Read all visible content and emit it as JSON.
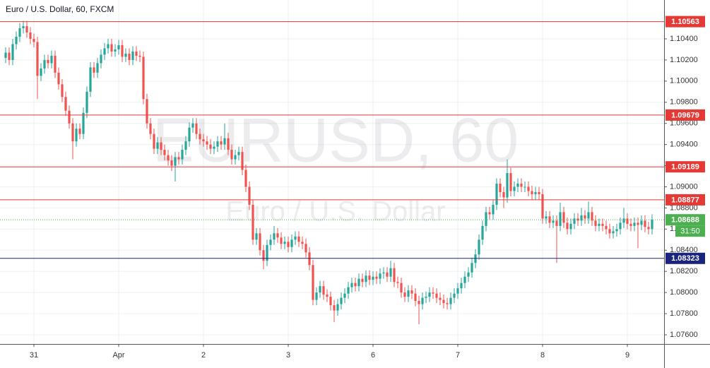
{
  "chart_data": {
    "type": "candlestick",
    "title": "Euro / U.S. Dollar, 60, FXCM",
    "watermark": "EURUSD, 60",
    "watermark_subtitle": "Euro / U.S. Dollar",
    "up_color": "#26a69a",
    "down_color": "#ef5350",
    "grid": true,
    "ylim": [
      1.07513,
      1.10714
    ],
    "yticks": [
      {
        "value": 1.104,
        "label": "1.10400"
      },
      {
        "value": 1.102,
        "label": "1.10200"
      },
      {
        "value": 1.1,
        "label": "1.10000"
      },
      {
        "value": 1.098,
        "label": "1.09800"
      },
      {
        "value": 1.096,
        "label": "1.09600"
      },
      {
        "value": 1.094,
        "label": "1.09400"
      },
      {
        "value": 1.092,
        "label": "1.09200"
      },
      {
        "value": 1.09,
        "label": "1.09000"
      },
      {
        "value": 1.088,
        "label": "1.08800"
      },
      {
        "value": 1.086,
        "label": "1.08600"
      },
      {
        "value": 1.084,
        "label": "1.08400"
      },
      {
        "value": 1.082,
        "label": "1.08200"
      },
      {
        "value": 1.08,
        "label": "1.08000"
      },
      {
        "value": 1.078,
        "label": "1.07800"
      },
      {
        "value": 1.076,
        "label": "1.07600"
      }
    ],
    "xlim": [
      -1.6,
      186.4
    ],
    "xticks": [
      {
        "value": 8,
        "label": "31"
      },
      {
        "value": 32,
        "label": "Apr"
      },
      {
        "value": 56,
        "label": "2"
      },
      {
        "value": 80,
        "label": "3"
      },
      {
        "value": 104,
        "label": "6"
      },
      {
        "value": 128,
        "label": "7"
      },
      {
        "value": 152,
        "label": "8"
      },
      {
        "value": 176,
        "label": "9"
      }
    ],
    "levels": [
      {
        "value": 1.10563,
        "color": "#e53935"
      },
      {
        "value": 1.09679,
        "color": "#e53935"
      },
      {
        "value": 1.09189,
        "color": "#e53935"
      },
      {
        "value": 1.08877,
        "color": "#e53935"
      },
      {
        "value": 1.08323,
        "color": "#1a237e"
      }
    ],
    "last_price": 1.08688,
    "last_price_color": "#4caf50",
    "countdown": "31:50",
    "open": [
      1.1022,
      1.1027,
      1.102,
      1.1035,
      1.1042,
      1.105,
      1.1052,
      1.1046,
      1.104,
      1.1037,
      1.1005,
      1.1012,
      1.102,
      1.1017,
      1.1024,
      1.1008,
      1.0997,
      1.0985,
      1.0972,
      1.096,
      1.0943,
      1.0955,
      1.095,
      1.097,
      1.099,
      1.1013,
      1.1008,
      1.1017,
      1.1025,
      1.1031,
      1.1035,
      1.1028,
      1.103,
      1.1034,
      1.1023,
      1.1026,
      1.102,
      1.1028,
      1.1024,
      1.1023,
      1.0983,
      1.096,
      1.095,
      1.0936,
      1.0942,
      1.0935,
      1.093,
      1.0925,
      1.092,
      1.0928,
      1.0926,
      1.0935,
      1.0943,
      1.0956,
      1.096,
      1.095,
      1.0945,
      1.0943,
      1.094,
      1.0936,
      1.0938,
      1.0943,
      1.094,
      1.0946,
      1.0935,
      1.0926,
      1.093,
      1.0933,
      1.0916,
      1.09,
      1.0883,
      1.085,
      1.0856,
      1.084,
      1.083,
      1.0845,
      1.085,
      1.0856,
      1.0852,
      1.0846,
      1.0848,
      1.0843,
      1.085,
      1.0853,
      1.0848,
      1.0846,
      1.0838,
      1.0826,
      1.0793,
      1.08,
      1.0806,
      1.0798,
      1.0796,
      1.0788,
      1.0783,
      1.0789,
      1.0795,
      1.0799,
      1.0805,
      1.0809,
      1.0806,
      1.0813,
      1.081,
      1.0816,
      1.0812,
      1.0815,
      1.0813,
      1.0818,
      1.0819,
      1.0815,
      1.0823,
      1.081,
      1.0809,
      1.08,
      1.0796,
      1.0802,
      1.0799,
      1.0792,
      1.0789,
      1.0795,
      1.0796,
      1.08,
      1.0799,
      1.0795,
      1.0793,
      1.079,
      1.0789,
      1.0795,
      1.0799,
      1.0804,
      1.0809,
      1.0815,
      1.0819,
      1.0828,
      1.0836,
      1.085,
      1.0863,
      1.0876,
      1.0874,
      1.0883,
      1.0903,
      1.0895,
      1.089,
      1.0913,
      1.0896,
      1.09,
      1.0903,
      1.09,
      1.09,
      1.0896,
      1.0893,
      1.0895,
      1.0893,
      1.087,
      1.0872,
      1.0866,
      1.0868,
      1.0863,
      1.0876,
      1.0866,
      1.086,
      1.0865,
      1.087,
      1.0868,
      1.0873,
      1.087,
      1.0876,
      1.0868,
      1.0863,
      1.0865,
      1.0863,
      1.086,
      1.0856,
      1.0858,
      1.086,
      1.0866,
      1.087,
      1.0865,
      1.0863,
      1.0866,
      1.0864,
      1.0868,
      1.0862,
      1.086
    ],
    "high": [
      1.1032,
      1.1032,
      1.104,
      1.1047,
      1.1055,
      1.1057,
      1.1057,
      1.1051,
      1.1045,
      1.1042,
      1.1017,
      1.1025,
      1.1025,
      1.1029,
      1.1029,
      1.1013,
      1.1002,
      1.099,
      1.0977,
      1.0965,
      1.096,
      1.096,
      1.0975,
      1.0995,
      1.1018,
      1.1018,
      1.1022,
      1.103,
      1.1036,
      1.104,
      1.104,
      1.1035,
      1.1039,
      1.1039,
      1.1031,
      1.1031,
      1.1033,
      1.1033,
      1.1029,
      1.1028,
      1.0988,
      1.0965,
      1.0955,
      1.0947,
      1.0947,
      1.094,
      1.0935,
      1.093,
      1.0933,
      1.0933,
      1.094,
      1.0948,
      1.0961,
      1.0965,
      1.0965,
      1.0955,
      1.095,
      1.0948,
      1.0945,
      1.0943,
      1.0948,
      1.0948,
      1.096,
      1.0951,
      1.094,
      1.0935,
      1.0938,
      1.0938,
      1.0921,
      1.0905,
      1.0888,
      1.0861,
      1.0861,
      1.0845,
      1.085,
      1.0855,
      1.0863,
      1.0861,
      1.0857,
      1.0853,
      1.0853,
      1.0855,
      1.0858,
      1.0858,
      1.0853,
      1.0851,
      1.0843,
      1.0831,
      1.0805,
      1.0811,
      1.0811,
      1.0803,
      1.0801,
      1.0793,
      1.0794,
      1.08,
      1.0804,
      1.081,
      1.0814,
      1.0814,
      1.0818,
      1.0818,
      1.0821,
      1.0821,
      1.082,
      1.082,
      1.0823,
      1.0824,
      1.0824,
      1.083,
      1.0828,
      1.0815,
      1.0814,
      1.0805,
      1.0807,
      1.0807,
      1.0804,
      1.0797,
      1.08,
      1.0801,
      1.0805,
      1.0805,
      1.0804,
      1.08,
      1.0798,
      1.0795,
      1.08,
      1.0804,
      1.0809,
      1.0814,
      1.082,
      1.0824,
      1.0833,
      1.0841,
      1.0855,
      1.0868,
      1.0881,
      1.0881,
      1.0888,
      1.0908,
      1.0908,
      1.09,
      1.0926,
      1.0918,
      1.0905,
      1.0908,
      1.0908,
      1.0905,
      1.0905,
      1.0901,
      1.09,
      1.09,
      1.0898,
      1.0877,
      1.0877,
      1.0873,
      1.0873,
      1.0885,
      1.0881,
      1.0871,
      1.087,
      1.0875,
      1.0875,
      1.088,
      1.0878,
      1.0886,
      1.0881,
      1.0873,
      1.087,
      1.087,
      1.0868,
      1.0865,
      1.0863,
      1.0865,
      1.0871,
      1.088,
      1.0875,
      1.087,
      1.0871,
      1.0871,
      1.0873,
      1.0873,
      1.0867,
      1.0874
    ],
    "low": [
      1.1017,
      1.1015,
      1.1015,
      1.103,
      1.1037,
      1.1045,
      1.1041,
      1.1035,
      1.1032,
      1.0983,
      1.1,
      1.1007,
      1.1012,
      1.1012,
      1.1003,
      1.0992,
      1.098,
      1.0967,
      1.0955,
      1.0926,
      1.0938,
      1.0945,
      1.0945,
      1.0965,
      1.0985,
      1.1003,
      1.1003,
      1.1012,
      1.102,
      1.1026,
      1.1023,
      1.1023,
      1.1025,
      1.1018,
      1.1018,
      1.1015,
      1.1015,
      1.1019,
      1.1018,
      1.0978,
      1.0955,
      1.0945,
      1.0931,
      1.0931,
      1.093,
      1.0925,
      1.092,
      1.0915,
      1.0905,
      1.0921,
      1.0921,
      1.093,
      1.0938,
      1.0951,
      1.0945,
      1.094,
      1.0938,
      1.0935,
      1.0931,
      1.0931,
      1.0933,
      1.0935,
      1.0935,
      1.093,
      1.0921,
      1.0921,
      1.0925,
      1.0911,
      1.0895,
      1.0878,
      1.0845,
      1.0845,
      1.0835,
      1.0822,
      1.0825,
      1.084,
      1.0845,
      1.0847,
      1.0841,
      1.0841,
      1.0838,
      1.0838,
      1.0845,
      1.0843,
      1.0841,
      1.0833,
      1.0821,
      1.0788,
      1.0788,
      1.0795,
      1.0793,
      1.0791,
      1.0783,
      1.0772,
      1.0778,
      1.0784,
      1.079,
      1.0794,
      1.08,
      1.0801,
      1.0801,
      1.0805,
      1.0805,
      1.0807,
      1.0807,
      1.0808,
      1.0808,
      1.0813,
      1.081,
      1.081,
      1.0805,
      1.0804,
      1.0795,
      1.0791,
      1.0791,
      1.0794,
      1.0787,
      1.077,
      1.0784,
      1.079,
      1.0791,
      1.0794,
      1.079,
      1.0788,
      1.0785,
      1.0784,
      1.0784,
      1.079,
      1.0794,
      1.0799,
      1.0804,
      1.081,
      1.0814,
      1.0823,
      1.0831,
      1.0845,
      1.0858,
      1.0869,
      1.0869,
      1.0878,
      1.089,
      1.088,
      1.0885,
      1.0891,
      1.0891,
      1.0895,
      1.0895,
      1.0895,
      1.0891,
      1.0888,
      1.0888,
      1.0888,
      1.0865,
      1.0865,
      1.0861,
      1.0861,
      1.0828,
      1.0858,
      1.0861,
      1.0855,
      1.0855,
      1.086,
      1.0863,
      1.0863,
      1.0865,
      1.0865,
      1.0863,
      1.0858,
      1.0858,
      1.0858,
      1.0855,
      1.0851,
      1.0851,
      1.0853,
      1.0855,
      1.0861,
      1.086,
      1.0858,
      1.0858,
      1.0842,
      1.0859,
      1.0857,
      1.0855,
      1.0855
    ],
    "close": [
      1.1027,
      1.102,
      1.1035,
      1.1042,
      1.105,
      1.1052,
      1.1046,
      1.104,
      1.1037,
      1.1005,
      1.1012,
      1.102,
      1.1017,
      1.1024,
      1.1008,
      1.0997,
      1.0985,
      1.0972,
      1.096,
      1.0943,
      1.0955,
      1.095,
      1.097,
      1.099,
      1.1013,
      1.1008,
      1.1017,
      1.1025,
      1.1031,
      1.1035,
      1.1028,
      1.103,
      1.1034,
      1.1023,
      1.1026,
      1.102,
      1.1028,
      1.1024,
      1.1023,
      1.0983,
      1.096,
      1.095,
      1.0936,
      1.0942,
      1.0935,
      1.093,
      1.0925,
      1.092,
      1.0928,
      1.0926,
      1.0935,
      1.0943,
      1.0956,
      1.096,
      1.095,
      1.0945,
      1.0943,
      1.094,
      1.0936,
      1.0938,
      1.0943,
      1.094,
      1.0946,
      1.0935,
      1.0926,
      1.093,
      1.0933,
      1.0916,
      1.09,
      1.0883,
      1.085,
      1.0856,
      1.084,
      1.083,
      1.0845,
      1.085,
      1.0856,
      1.0852,
      1.0846,
      1.0848,
      1.0843,
      1.085,
      1.0853,
      1.0848,
      1.0846,
      1.0838,
      1.0826,
      1.0793,
      1.08,
      1.0806,
      1.0798,
      1.0796,
      1.0788,
      1.0783,
      1.0789,
      1.0795,
      1.0799,
      1.0805,
      1.0809,
      1.0806,
      1.0813,
      1.081,
      1.0816,
      1.0812,
      1.0815,
      1.0813,
      1.0818,
      1.0819,
      1.0815,
      1.0823,
      1.081,
      1.0809,
      1.08,
      1.0796,
      1.0802,
      1.0799,
      1.0792,
      1.0789,
      1.0795,
      1.0796,
      1.08,
      1.0799,
      1.0795,
      1.0793,
      1.079,
      1.0789,
      1.0795,
      1.0799,
      1.0804,
      1.0809,
      1.0815,
      1.0819,
      1.0828,
      1.0836,
      1.085,
      1.0863,
      1.0876,
      1.0874,
      1.0883,
      1.0903,
      1.0895,
      1.089,
      1.0913,
      1.0896,
      1.09,
      1.0903,
      1.09,
      1.09,
      1.0896,
      1.0893,
      1.0895,
      1.0893,
      1.087,
      1.0872,
      1.0866,
      1.0868,
      1.0863,
      1.0876,
      1.0866,
      1.086,
      1.0865,
      1.087,
      1.0868,
      1.0873,
      1.087,
      1.0876,
      1.0868,
      1.0863,
      1.0865,
      1.0863,
      1.086,
      1.0856,
      1.0858,
      1.086,
      1.0866,
      1.087,
      1.0865,
      1.0863,
      1.0866,
      1.0864,
      1.0868,
      1.0862,
      1.086,
      1.08688
    ]
  }
}
